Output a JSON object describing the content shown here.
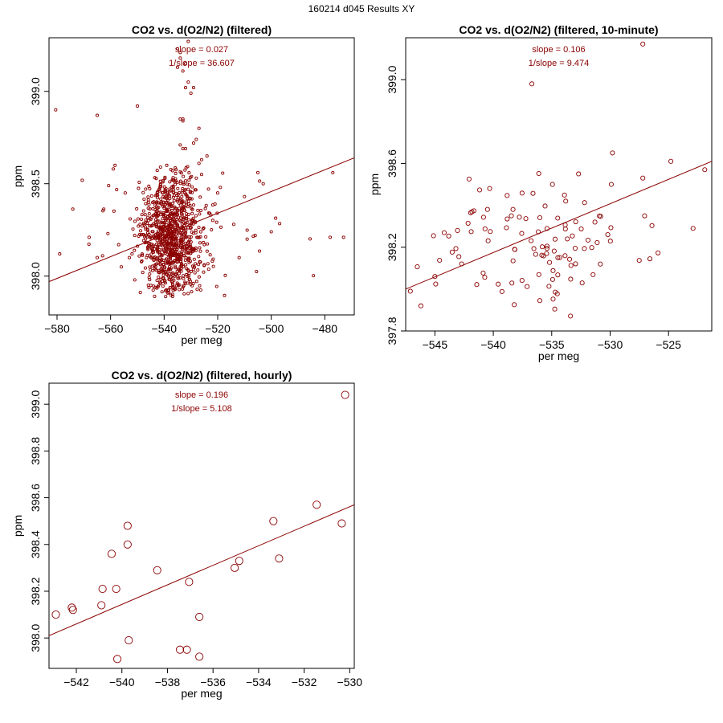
{
  "page": {
    "title": "160214   d045   Results XY"
  },
  "chart_data": [
    {
      "type": "scatter",
      "title": "CO2 vs. d(O2/N2) (filtered)",
      "xlabel": "per meg",
      "ylabel": "ppm",
      "xlim": [
        -583,
        -469
      ],
      "ylim": [
        397.79,
        399.29
      ],
      "xticks": [
        -580,
        -560,
        -540,
        -520,
        -500,
        -480
      ],
      "yticks": [
        398.0,
        398.5,
        399.0
      ],
      "ytick_labels": [
        "398.0",
        "398.5",
        "399.0"
      ],
      "annotations": {
        "slope": "slope = 0.027",
        "inv_slope": "1/slope = 36.607"
      },
      "fit": {
        "x": [
          -583,
          -469
        ],
        "y": [
          397.97,
          398.64
        ]
      },
      "generated": {
        "count": 1000,
        "seed": 11,
        "clusters": [
          {
            "weight": 0.96,
            "x_mean": -537,
            "x_sd": 5.5,
            "y_mean": 398.22,
            "y_sd": 0.17,
            "y_min": 397.88,
            "y_max": 398.6
          },
          {
            "weight": 0.04,
            "x_mean": -530,
            "x_sd": 25,
            "y_mean": 398.3,
            "y_sd": 0.15,
            "y_min": 398.0,
            "y_max": 398.6
          }
        ]
      },
      "points": {
        "x": [
          -580.5,
          -565,
          -559,
          -550,
          -524,
          -535,
          -534,
          -535,
          -532,
          -531,
          -534,
          -533,
          -532,
          -530,
          -529,
          -531,
          -533,
          -534,
          -533,
          -534,
          -533,
          -532,
          -529,
          -528,
          -527,
          -526,
          -527,
          -526,
          -528,
          -519,
          -520,
          -510,
          -505,
          -503,
          -477,
          -473,
          -579,
          -568,
          -565,
          -563,
          -557,
          -553,
          -556,
          -552,
          -548,
          -545,
          -551,
          -549,
          -546,
          -514,
          -512,
          -509,
          -506,
          -500,
          -478,
          -561
        ],
        "y": [
          398.9,
          398.87,
          398.58,
          398.92,
          398.65,
          399.23,
          399.21,
          399.13,
          399.15,
          399.27,
          399.18,
          399.11,
          399.02,
          398.99,
          399.02,
          399.05,
          398.85,
          398.85,
          398.84,
          398.71,
          398.69,
          398.69,
          398.72,
          398.74,
          398.8,
          398.63,
          398.61,
          398.55,
          398.53,
          398.48,
          398.45,
          398.43,
          398.56,
          398.5,
          398.56,
          398.21,
          398.12,
          398.21,
          398.1,
          398.11,
          398.17,
          398.1,
          398.05,
          398.12,
          398.02,
          397.95,
          398.22,
          398.28,
          398.15,
          398.28,
          398.1,
          398.2,
          398.22,
          398.24,
          398.21,
          398.23
        ]
      },
      "point_radius": 1.6
    },
    {
      "type": "scatter",
      "title": "CO2 vs. d(O2/N2) (filtered, 10-minute)",
      "xlabel": "per meg",
      "ylabel": "ppm",
      "xlim": [
        -547.5,
        -521.3
      ],
      "ylim": [
        397.8,
        399.2
      ],
      "xticks": [
        -545,
        -540,
        -535,
        -530,
        -525
      ],
      "yticks": [
        397.8,
        398.2,
        398.6,
        399.0
      ],
      "ytick_labels": [
        "397.8",
        "398.2",
        "398.6",
        "399.0"
      ],
      "annotations": {
        "slope": "slope = 0.106",
        "inv_slope": "1/slope = 9.474"
      },
      "fit": {
        "x": [
          -547.5,
          -521.3
        ],
        "y": [
          398.0,
          398.61
        ]
      },
      "generated": {
        "count": 110,
        "seed": 23,
        "clusters": [
          {
            "weight": 1.0,
            "x_mean": -537,
            "x_sd": 4.6,
            "y_mean": 398.2,
            "y_sd": 0.17,
            "y_min": 397.86,
            "y_max": 398.56
          }
        ]
      },
      "points": {
        "x": [
          -536.7,
          -527.2,
          -529.8,
          -524.8,
          -521.9,
          -522.9,
          -527.2,
          -529.9,
          -530.2,
          -547.1,
          -546.2,
          -545,
          -531.3,
          -532.7,
          -533.8
        ],
        "y": [
          398.98,
          399.17,
          398.65,
          398.61,
          398.57,
          398.29,
          398.53,
          398.5,
          398.26,
          397.99,
          397.92,
          398.06,
          398.32,
          398.55,
          398.42
        ]
      },
      "point_radius": 2.6
    },
    {
      "type": "scatter",
      "title": "CO2 vs. d(O2/N2) (filtered, hourly)",
      "xlabel": "per meg",
      "ylabel": "ppm",
      "xlim": [
        -543.2,
        -529.8
      ],
      "ylim": [
        397.87,
        399.09
      ],
      "xticks": [
        -542,
        -540,
        -538,
        -536,
        -534,
        -532,
        -530
      ],
      "yticks": [
        398.0,
        398.2,
        398.4,
        398.6,
        398.8,
        399.0
      ],
      "ytick_labels": [
        "398.0",
        "398.2",
        "398.4",
        "398.6",
        "398.8",
        "399.0"
      ],
      "annotations": {
        "slope": "slope = 0.196",
        "inv_slope": "1/slope = 5.108"
      },
      "fit": {
        "x": [
          -543.2,
          -529.8
        ],
        "y": [
          398.01,
          398.57
        ]
      },
      "points": {
        "x": [
          -542.9,
          -542.2,
          -542.15,
          -540.9,
          -540.85,
          -540.45,
          -540.25,
          -540.2,
          -539.75,
          -539.75,
          -539.7,
          -538.45,
          -537.45,
          -537.15,
          -537.05,
          -536.6,
          -536.6,
          -535.05,
          -534.85,
          -533.35,
          -533.1,
          -531.45,
          -530.35,
          -530.2
        ],
        "y": [
          398.1,
          398.13,
          398.12,
          398.14,
          398.21,
          398.36,
          398.21,
          397.91,
          398.48,
          398.4,
          397.99,
          398.29,
          397.95,
          397.95,
          398.24,
          398.09,
          397.92,
          398.3,
          398.33,
          398.5,
          398.34,
          398.57,
          398.49,
          399.04
        ]
      },
      "point_radius": 4.6
    }
  ]
}
